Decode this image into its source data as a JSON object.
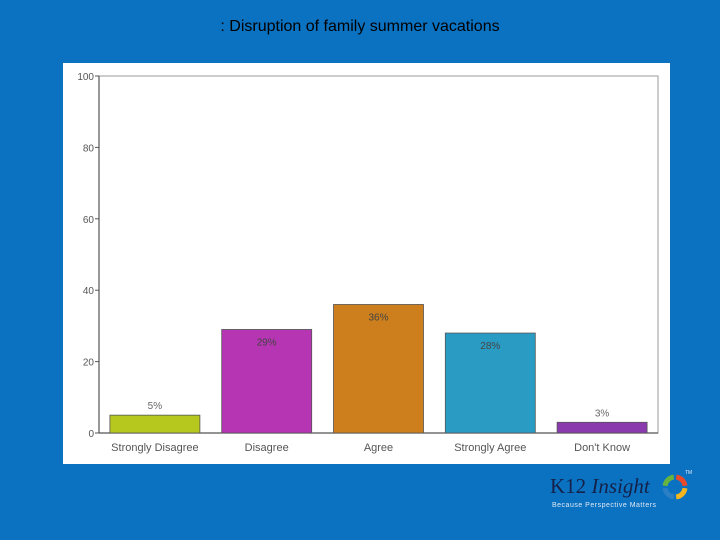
{
  "slide": {
    "title": ": Disruption of family summer vacations"
  },
  "chart_data": {
    "type": "bar",
    "categories": [
      "Strongly Disagree",
      "Disagree",
      "Agree",
      "Strongly Agree",
      "Don't Know"
    ],
    "values": [
      5,
      29,
      36,
      28,
      3
    ],
    "value_labels": [
      "5%",
      "29%",
      "36%",
      "28%",
      "3%"
    ],
    "colors": [
      "#b6c81e",
      "#b535b2",
      "#cc7f1c",
      "#2a9cc4",
      "#8a3aad"
    ],
    "ylim": [
      0,
      100
    ],
    "yticks": [
      0,
      20,
      40,
      60,
      80,
      100
    ],
    "grid": false,
    "legend": "none"
  },
  "branding": {
    "name_part1": "K12",
    "name_part2": "Insight",
    "trademark": "TM",
    "tagline": "Because Perspective Matters",
    "logo_colors": [
      "#e94a2b",
      "#f6b51c",
      "#2b7fc4",
      "#66b43f"
    ]
  }
}
